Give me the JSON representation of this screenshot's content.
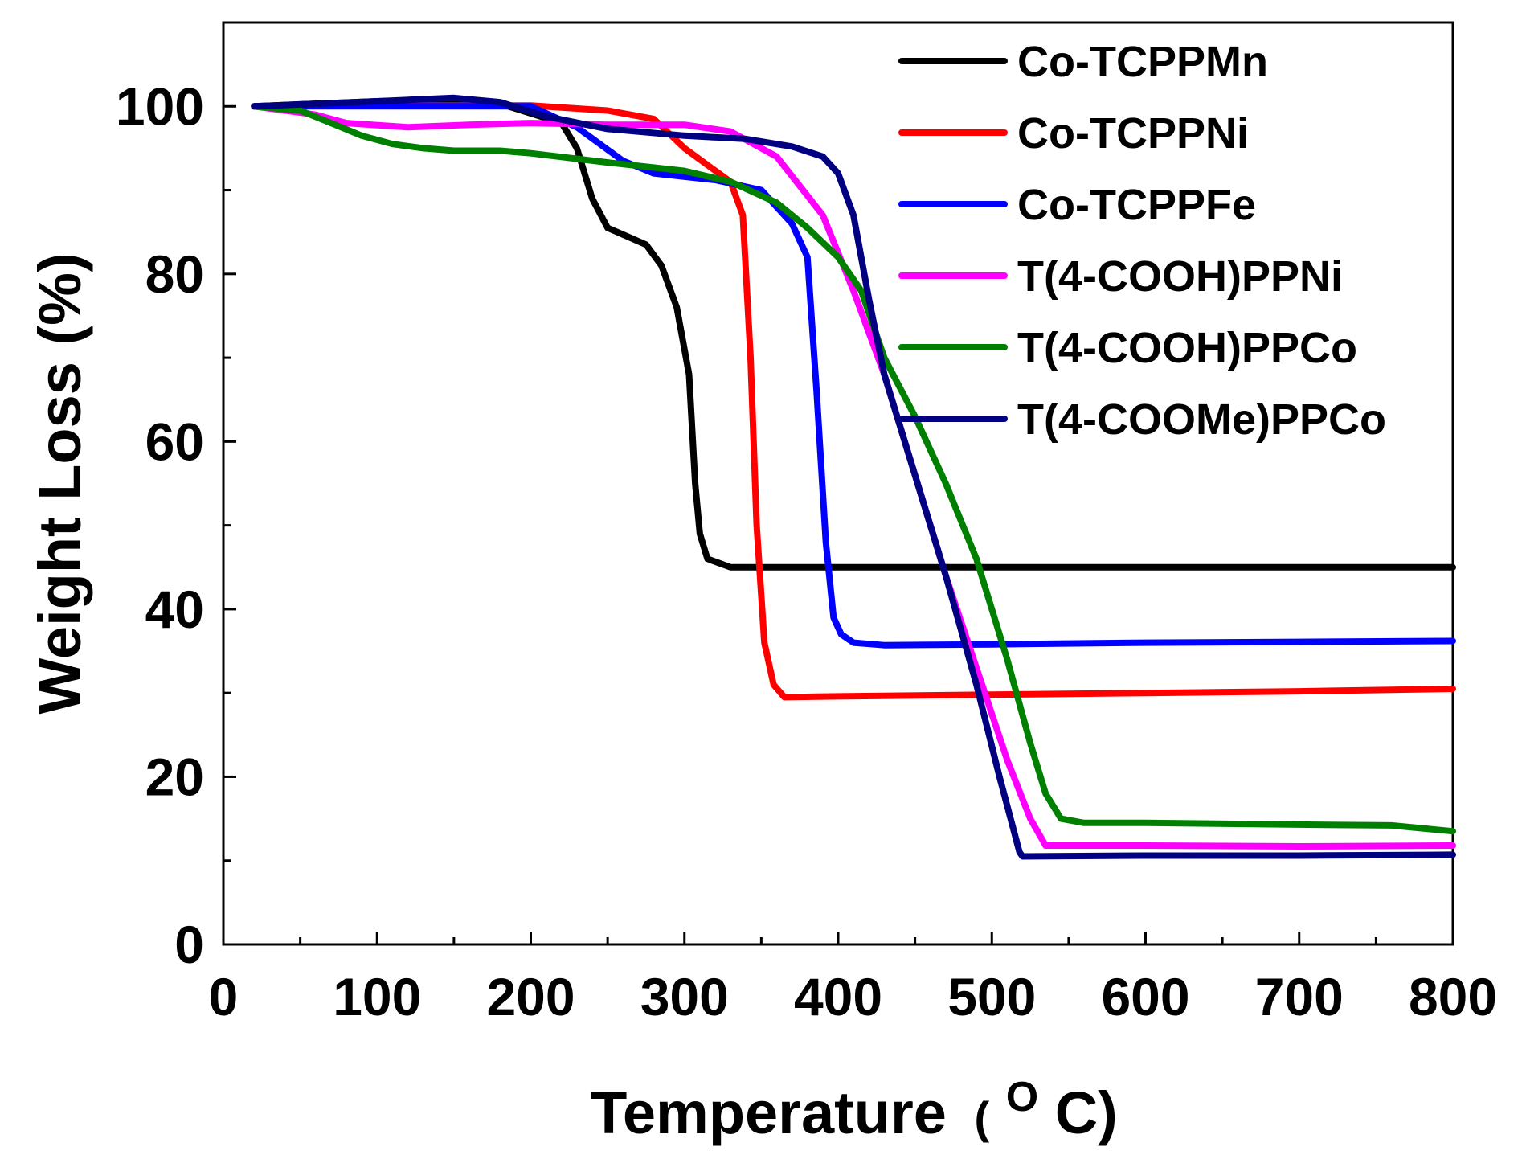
{
  "chart_data": {
    "type": "line",
    "title": "",
    "xlabel": "Temperature",
    "xlabel_unit_open": "(",
    "xlabel_unit_sup": "O",
    "xlabel_unit_rest": "C)",
    "ylabel": "Weight Loss (%)",
    "xlim": [
      0,
      800
    ],
    "ylim": [
      0,
      110
    ],
    "xticks": [
      0,
      100,
      200,
      300,
      400,
      500,
      600,
      700,
      800
    ],
    "yticks": [
      0,
      20,
      40,
      60,
      80,
      100
    ],
    "legend_position": "top-right",
    "grid": false,
    "series": [
      {
        "name": "Co-TCPPMn",
        "color": "#000000",
        "points": [
          [
            20,
            100
          ],
          [
            60,
            100.3
          ],
          [
            100,
            100.6
          ],
          [
            150,
            100.8
          ],
          [
            180,
            100.3
          ],
          [
            220,
            98
          ],
          [
            230,
            95
          ],
          [
            240,
            89
          ],
          [
            250,
            85.5
          ],
          [
            260,
            84.7
          ],
          [
            275,
            83.5
          ],
          [
            285,
            81
          ],
          [
            295,
            76
          ],
          [
            303,
            68
          ],
          [
            307,
            55
          ],
          [
            310,
            49
          ],
          [
            315,
            46
          ],
          [
            330,
            45
          ],
          [
            400,
            45
          ],
          [
            500,
            45
          ],
          [
            600,
            45
          ],
          [
            700,
            45
          ],
          [
            800,
            45
          ]
        ]
      },
      {
        "name": "Co-TCPPNi",
        "color": "#ff0000",
        "points": [
          [
            20,
            100
          ],
          [
            100,
            100.1
          ],
          [
            200,
            100.1
          ],
          [
            250,
            99.5
          ],
          [
            280,
            98.5
          ],
          [
            300,
            95
          ],
          [
            315,
            93
          ],
          [
            330,
            91
          ],
          [
            338,
            87
          ],
          [
            343,
            70
          ],
          [
            347,
            50
          ],
          [
            352,
            36
          ],
          [
            358,
            31
          ],
          [
            365,
            29.5
          ],
          [
            400,
            29.6
          ],
          [
            500,
            29.8
          ],
          [
            600,
            30
          ],
          [
            700,
            30.2
          ],
          [
            800,
            30.5
          ]
        ]
      },
      {
        "name": "Co-TCPPFe",
        "color": "#0000ff",
        "points": [
          [
            20,
            100
          ],
          [
            100,
            100
          ],
          [
            200,
            100
          ],
          [
            230,
            97.5
          ],
          [
            260,
            93.5
          ],
          [
            280,
            92
          ],
          [
            320,
            91.2
          ],
          [
            350,
            90
          ],
          [
            370,
            86
          ],
          [
            380,
            82
          ],
          [
            386,
            66
          ],
          [
            392,
            48
          ],
          [
            397,
            39
          ],
          [
            402,
            37
          ],
          [
            410,
            36
          ],
          [
            430,
            35.7
          ],
          [
            500,
            35.8
          ],
          [
            600,
            36
          ],
          [
            700,
            36.1
          ],
          [
            800,
            36.2
          ]
        ]
      },
      {
        "name": "T(4-COOH)PPNi",
        "color": "#ff00ff",
        "points": [
          [
            20,
            100
          ],
          [
            60,
            99
          ],
          [
            80,
            98
          ],
          [
            120,
            97.5
          ],
          [
            160,
            97.8
          ],
          [
            200,
            98
          ],
          [
            250,
            97.8
          ],
          [
            300,
            97.8
          ],
          [
            330,
            97
          ],
          [
            360,
            94
          ],
          [
            390,
            87
          ],
          [
            410,
            78
          ],
          [
            430,
            68
          ],
          [
            450,
            56
          ],
          [
            470,
            44
          ],
          [
            490,
            33
          ],
          [
            510,
            22
          ],
          [
            525,
            15
          ],
          [
            535,
            11.8
          ],
          [
            560,
            11.8
          ],
          [
            600,
            11.8
          ],
          [
            700,
            11.7
          ],
          [
            800,
            11.8
          ]
        ]
      },
      {
        "name": "T(4-COOH)PPCo",
        "color": "#008000",
        "points": [
          [
            20,
            100
          ],
          [
            50,
            99.5
          ],
          [
            70,
            98
          ],
          [
            90,
            96.5
          ],
          [
            110,
            95.5
          ],
          [
            130,
            95
          ],
          [
            150,
            94.7
          ],
          [
            180,
            94.7
          ],
          [
            200,
            94.4
          ],
          [
            250,
            93.3
          ],
          [
            300,
            92.3
          ],
          [
            330,
            91
          ],
          [
            360,
            88.5
          ],
          [
            380,
            85.5
          ],
          [
            400,
            82
          ],
          [
            415,
            78
          ],
          [
            430,
            70
          ],
          [
            450,
            63
          ],
          [
            470,
            55
          ],
          [
            490,
            46
          ],
          [
            510,
            34
          ],
          [
            525,
            24
          ],
          [
            535,
            18
          ],
          [
            545,
            15
          ],
          [
            560,
            14.5
          ],
          [
            600,
            14.5
          ],
          [
            700,
            14.3
          ],
          [
            760,
            14.2
          ],
          [
            800,
            13.5
          ]
        ]
      },
      {
        "name": "T(4-COOMe)PPCo",
        "color": "#000080",
        "points": [
          [
            20,
            100
          ],
          [
            60,
            100.3
          ],
          [
            100,
            100.6
          ],
          [
            150,
            101
          ],
          [
            180,
            100.5
          ],
          [
            210,
            98.8
          ],
          [
            250,
            97.3
          ],
          [
            300,
            96.5
          ],
          [
            340,
            96.1
          ],
          [
            370,
            95.2
          ],
          [
            390,
            94
          ],
          [
            400,
            92
          ],
          [
            410,
            87
          ],
          [
            420,
            77
          ],
          [
            430,
            68
          ],
          [
            450,
            56
          ],
          [
            470,
            44
          ],
          [
            490,
            31
          ],
          [
            505,
            20
          ],
          [
            518,
            11
          ],
          [
            520,
            10.5
          ],
          [
            600,
            10.6
          ],
          [
            700,
            10.6
          ],
          [
            800,
            10.7
          ]
        ]
      }
    ]
  }
}
